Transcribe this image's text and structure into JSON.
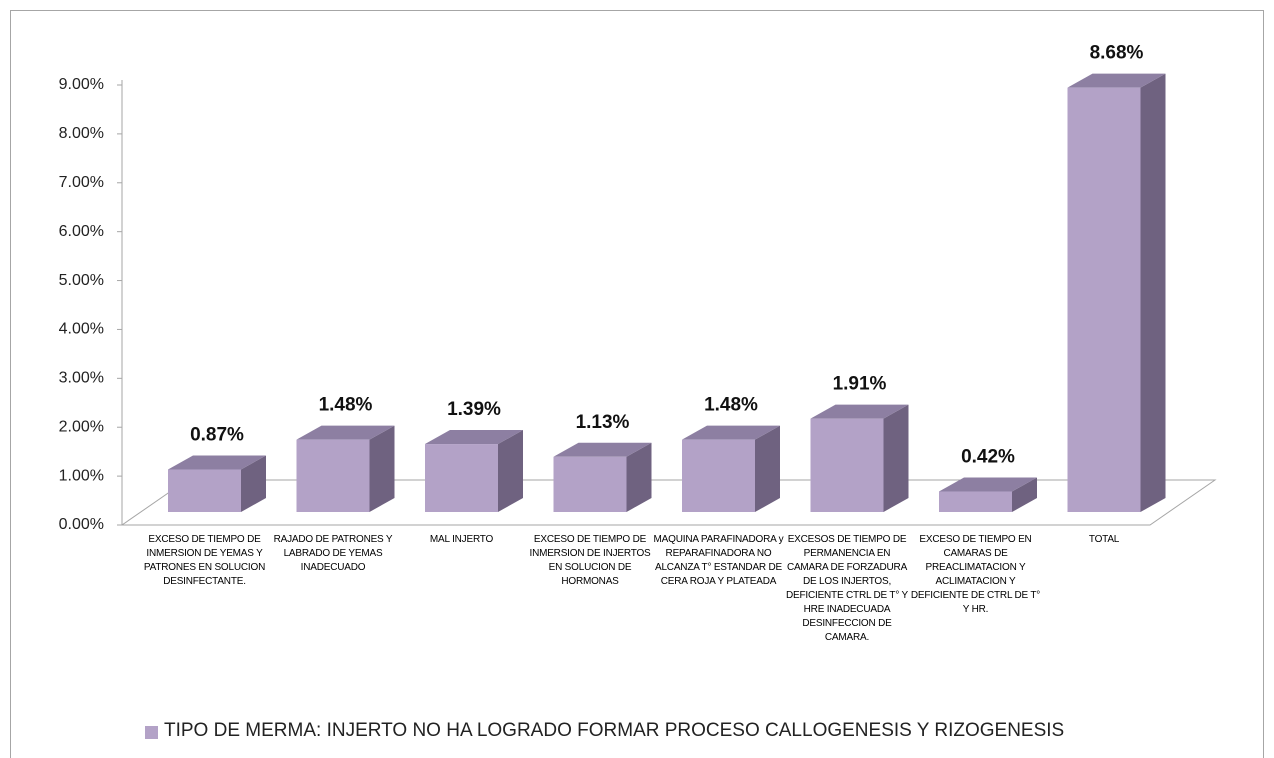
{
  "chart_data": {
    "type": "bar3d",
    "categories": [
      "EXCESO DE TIEMPO DE INMERSION DE YEMAS Y PATRONES EN SOLUCION DESINFECTANTE.",
      "RAJADO DE PATRONES Y LABRADO DE YEMAS INADECUADO",
      "MAL INJERTO",
      "EXCESO DE TIEMPO DE INMERSION DE INJERTOS EN SOLUCION DE HORMONAS",
      "MAQUINA PARAFINADORA y REPARAFINADORA NO ALCANZA T° ESTANDAR DE CERA ROJA Y PLATEADA",
      "EXCESOS DE TIEMPO DE PERMANENCIA EN CAMARA DE FORZADURA DE LOS INJERTOS, DEFICIENTE CTRL DE T° Y HRE INADECUADA DESINFECCION DE CAMARA.",
      "EXCESO DE TIEMPO EN CAMARAS DE PREACLIMATACION Y ACLIMATACION Y DEFICIENTE DE CTRL DE T° Y HR.",
      "TOTAL"
    ],
    "series": [
      {
        "name": "TIPO DE MERMA:  INJERTO NO HA LOGRADO FORMAR PROCESO CALLOGENESIS Y RIZOGENESIS",
        "color": "#b3a2c7",
        "values": [
          0.87,
          1.48,
          1.39,
          1.13,
          1.48,
          1.91,
          0.42,
          8.68
        ],
        "value_labels": [
          "0.87%",
          "1.48%",
          "1.39%",
          "1.13%",
          "1.48%",
          "1.91%",
          "0.42%",
          "8.68%"
        ]
      }
    ],
    "ylim": [
      0,
      9
    ],
    "yticks": [
      {
        "value": 0,
        "label": "0.00%"
      },
      {
        "value": 1,
        "label": "1.00%"
      },
      {
        "value": 2,
        "label": "2.00%"
      },
      {
        "value": 3,
        "label": "3.00%"
      },
      {
        "value": 4,
        "label": "4.00%"
      },
      {
        "value": 5,
        "label": "5.00%"
      },
      {
        "value": 6,
        "label": "6.00%"
      },
      {
        "value": 7,
        "label": "7.00%"
      },
      {
        "value": 8,
        "label": "8.00%"
      },
      {
        "value": 9,
        "label": "9.00%"
      }
    ],
    "legend": "bottom"
  }
}
